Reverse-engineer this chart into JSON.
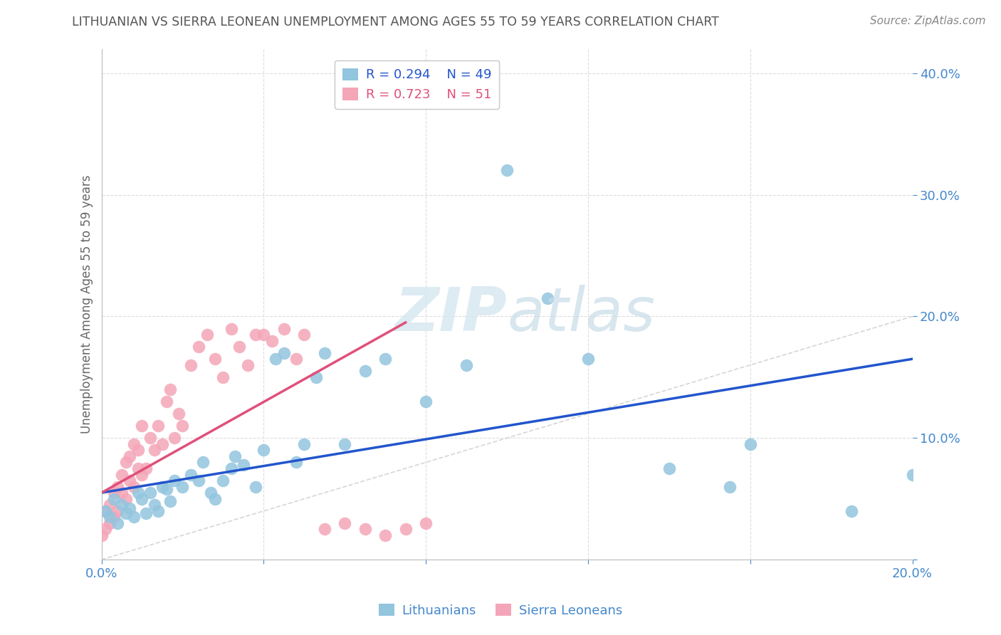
{
  "title": "LITHUANIAN VS SIERRA LEONEAN UNEMPLOYMENT AMONG AGES 55 TO 59 YEARS CORRELATION CHART",
  "source": "Source: ZipAtlas.com",
  "ylabel": "Unemployment Among Ages 55 to 59 years",
  "xlim": [
    0.0,
    0.2
  ],
  "ylim": [
    0.0,
    0.42
  ],
  "legend_r1": "0.294",
  "legend_n1": "49",
  "legend_r2": "0.723",
  "legend_n2": "51",
  "legend_label1": "Lithuanians",
  "legend_label2": "Sierra Leoneans",
  "blue_color": "#92c5de",
  "pink_color": "#f4a6b8",
  "blue_line_color": "#2255cc",
  "pink_line_color": "#e0507a",
  "diagonal_color": "#cccccc",
  "title_color": "#555555",
  "tick_color": "#4488cc",
  "background_color": "#ffffff",
  "grid_color": "#dddddd",
  "blue_scatter_x": [
    0.001,
    0.002,
    0.003,
    0.004,
    0.005,
    0.006,
    0.007,
    0.008,
    0.009,
    0.01,
    0.011,
    0.012,
    0.013,
    0.014,
    0.015,
    0.016,
    0.017,
    0.018,
    0.02,
    0.022,
    0.024,
    0.025,
    0.027,
    0.028,
    0.03,
    0.032,
    0.033,
    0.035,
    0.038,
    0.04,
    0.043,
    0.045,
    0.048,
    0.05,
    0.053,
    0.055,
    0.06,
    0.065,
    0.07,
    0.08,
    0.09,
    0.1,
    0.11,
    0.12,
    0.14,
    0.155,
    0.16,
    0.185,
    0.2
  ],
  "blue_scatter_y": [
    0.04,
    0.035,
    0.05,
    0.03,
    0.045,
    0.038,
    0.042,
    0.035,
    0.055,
    0.05,
    0.038,
    0.055,
    0.045,
    0.04,
    0.06,
    0.058,
    0.048,
    0.065,
    0.06,
    0.07,
    0.065,
    0.08,
    0.055,
    0.05,
    0.065,
    0.075,
    0.085,
    0.078,
    0.06,
    0.09,
    0.165,
    0.17,
    0.08,
    0.095,
    0.15,
    0.17,
    0.095,
    0.155,
    0.165,
    0.13,
    0.16,
    0.32,
    0.215,
    0.165,
    0.075,
    0.06,
    0.095,
    0.04,
    0.07
  ],
  "pink_scatter_x": [
    0.0,
    0.001,
    0.001,
    0.002,
    0.002,
    0.003,
    0.003,
    0.004,
    0.004,
    0.005,
    0.005,
    0.006,
    0.006,
    0.007,
    0.007,
    0.008,
    0.008,
    0.009,
    0.009,
    0.01,
    0.01,
    0.011,
    0.012,
    0.013,
    0.014,
    0.015,
    0.016,
    0.017,
    0.018,
    0.019,
    0.02,
    0.022,
    0.024,
    0.026,
    0.028,
    0.03,
    0.032,
    0.034,
    0.036,
    0.038,
    0.04,
    0.042,
    0.045,
    0.048,
    0.05,
    0.055,
    0.06,
    0.065,
    0.07,
    0.075,
    0.08
  ],
  "pink_scatter_y": [
    0.02,
    0.025,
    0.04,
    0.03,
    0.045,
    0.035,
    0.055,
    0.04,
    0.06,
    0.055,
    0.07,
    0.05,
    0.08,
    0.065,
    0.085,
    0.06,
    0.095,
    0.075,
    0.09,
    0.07,
    0.11,
    0.075,
    0.1,
    0.09,
    0.11,
    0.095,
    0.13,
    0.14,
    0.1,
    0.12,
    0.11,
    0.16,
    0.175,
    0.185,
    0.165,
    0.15,
    0.19,
    0.175,
    0.16,
    0.185,
    0.185,
    0.18,
    0.19,
    0.165,
    0.185,
    0.025,
    0.03,
    0.025,
    0.02,
    0.025,
    0.03
  ],
  "blue_trend_x": [
    0.0,
    0.2
  ],
  "blue_trend_y": [
    0.055,
    0.165
  ],
  "pink_trend_x": [
    0.0,
    0.075
  ],
  "pink_trend_y": [
    0.055,
    0.195
  ]
}
